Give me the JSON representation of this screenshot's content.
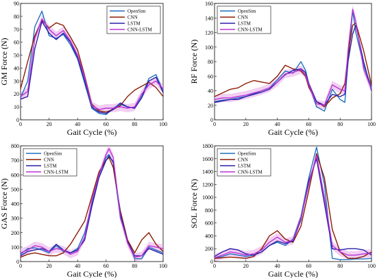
{
  "colors": {
    "OpenSim": "#1f6fbf",
    "CNN": "#8b1a00",
    "LSTM": "#2a1fa8",
    "CNN-LSTM": "#b833d6",
    "shade": "#e8a6e8"
  },
  "chart_data": [
    {
      "type": "line",
      "xlabel": "Gait Cycle (%)",
      "ylabel": "GM Force (N)",
      "xlim": [
        0,
        100
      ],
      "ylim": [
        0,
        90
      ],
      "xticks": [
        0,
        20,
        40,
        60,
        80,
        100
      ],
      "yticks": [
        0,
        10,
        20,
        30,
        40,
        50,
        60,
        70,
        80,
        90
      ],
      "legend": [
        "OpenSim",
        "CNN",
        "LSTM",
        "CNN-LSTM"
      ],
      "legend_position": "top-right",
      "x": [
        0,
        5,
        10,
        15,
        20,
        25,
        30,
        35,
        40,
        45,
        50,
        55,
        60,
        65,
        70,
        75,
        80,
        85,
        90,
        95,
        100
      ],
      "series": [
        {
          "name": "OpenSim",
          "values": [
            17,
            30,
            72,
            84,
            65,
            63,
            66,
            58,
            47,
            28,
            9,
            5,
            4,
            9,
            12,
            10,
            9,
            18,
            32,
            35,
            22
          ]
        },
        {
          "name": "CNN",
          "values": [
            24,
            45,
            65,
            77,
            71,
            75,
            73,
            64,
            54,
            34,
            12,
            7,
            6,
            8,
            11,
            18,
            23,
            26,
            29,
            25,
            18
          ]
        },
        {
          "name": "LSTM",
          "values": [
            16,
            18,
            55,
            76,
            67,
            62,
            67,
            60,
            48,
            30,
            10,
            6,
            5,
            8,
            13,
            10,
            9,
            17,
            30,
            33,
            21
          ]
        },
        {
          "name": "CNN-LSTM",
          "values": [
            18,
            22,
            63,
            78,
            70,
            65,
            69,
            61,
            50,
            33,
            11,
            8,
            9,
            9,
            10,
            9,
            10,
            20,
            27,
            30,
            24
          ]
        }
      ]
    },
    {
      "type": "line",
      "xlabel": "Gait Cycle (%)",
      "ylabel": "RF Force (N)",
      "xlim": [
        0,
        100
      ],
      "ylim": [
        0,
        160
      ],
      "xticks": [
        0,
        20,
        40,
        60,
        80,
        100
      ],
      "yticks": [
        0,
        20,
        40,
        60,
        80,
        100,
        120,
        140,
        160
      ],
      "legend": [
        "OpenSim",
        "CNN",
        "LSTM",
        "CNN-LSTM"
      ],
      "legend_position": "top-left",
      "x": [
        0,
        5,
        10,
        15,
        20,
        25,
        30,
        35,
        40,
        45,
        50,
        55,
        58,
        60,
        65,
        70,
        75,
        80,
        83,
        85,
        88,
        90,
        95,
        100
      ],
      "series": [
        {
          "name": "OpenSim",
          "values": [
            25,
            27,
            28,
            30,
            32,
            36,
            40,
            44,
            55,
            67,
            64,
            80,
            68,
            50,
            18,
            12,
            42,
            28,
            24,
            80,
            150,
            120,
            75,
            45
          ]
        },
        {
          "name": "CNN",
          "values": [
            32,
            37,
            42,
            44,
            50,
            54,
            52,
            50,
            60,
            75,
            70,
            67,
            60,
            45,
            25,
            18,
            30,
            36,
            50,
            90,
            130,
            133,
            95,
            48
          ]
        },
        {
          "name": "LSTM",
          "values": [
            24,
            26,
            28,
            28,
            32,
            35,
            38,
            42,
            52,
            62,
            68,
            70,
            65,
            50,
            25,
            20,
            35,
            32,
            35,
            80,
            118,
            130,
            80,
            40
          ]
        },
        {
          "name": "CNN-LSTM",
          "values": [
            28,
            30,
            30,
            32,
            34,
            37,
            40,
            44,
            52,
            63,
            65,
            69,
            62,
            48,
            22,
            20,
            48,
            42,
            40,
            95,
            152,
            135,
            70,
            42
          ]
        }
      ]
    },
    {
      "type": "line",
      "xlabel": "Gait Cycle (%)",
      "ylabel": "GAS Force (N)",
      "xlim": [
        0,
        100
      ],
      "ylim": [
        0,
        800
      ],
      "xticks": [
        0,
        20,
        40,
        60,
        80,
        100
      ],
      "yticks": [
        0,
        100,
        200,
        300,
        400,
        500,
        600,
        700,
        800
      ],
      "legend": [
        "OpenSim",
        "CNN",
        "LSTM",
        "CNN-LSTM"
      ],
      "legend_position": "top-left",
      "x": [
        0,
        5,
        10,
        15,
        20,
        25,
        30,
        35,
        40,
        45,
        50,
        55,
        60,
        62,
        65,
        70,
        75,
        80,
        85,
        90,
        95,
        100
      ],
      "series": [
        {
          "name": "OpenSim",
          "values": [
            50,
            90,
            95,
            80,
            60,
            110,
            70,
            60,
            90,
            200,
            400,
            600,
            720,
            740,
            680,
            300,
            150,
            20,
            20,
            100,
            80,
            60
          ]
        },
        {
          "name": "CNN",
          "values": [
            30,
            50,
            60,
            50,
            40,
            40,
            60,
            120,
            200,
            280,
            450,
            620,
            700,
            720,
            650,
            350,
            150,
            60,
            150,
            200,
            120,
            70
          ]
        },
        {
          "name": "LSTM",
          "values": [
            40,
            70,
            80,
            90,
            70,
            120,
            80,
            60,
            80,
            150,
            380,
            580,
            700,
            730,
            690,
            330,
            140,
            40,
            40,
            90,
            70,
            50
          ]
        },
        {
          "name": "CNN-LSTM",
          "values": [
            60,
            80,
            110,
            100,
            70,
            90,
            80,
            50,
            70,
            170,
            420,
            600,
            740,
            780,
            720,
            310,
            130,
            30,
            40,
            110,
            100,
            90
          ]
        }
      ]
    },
    {
      "type": "line",
      "xlabel": "Gait Cycle (%)",
      "ylabel": "SOL Force (N)",
      "xlim": [
        0,
        100
      ],
      "ylim": [
        0,
        1800
      ],
      "xticks": [
        0,
        20,
        40,
        60,
        80,
        100
      ],
      "yticks": [
        0,
        200,
        400,
        600,
        800,
        1000,
        1200,
        1400,
        1600,
        1800
      ],
      "legend": [
        "OpenSim",
        "CNN",
        "LSTM",
        "CNN-LSTM"
      ],
      "legend_position": "top-left",
      "x": [
        0,
        5,
        10,
        15,
        20,
        25,
        30,
        35,
        40,
        45,
        50,
        55,
        60,
        65,
        70,
        75,
        80,
        85,
        90,
        95,
        100
      ],
      "series": [
        {
          "name": "OpenSim",
          "values": [
            50,
            80,
            120,
            100,
            80,
            100,
            150,
            250,
            300,
            250,
            350,
            700,
            1300,
            1780,
            1200,
            50,
            30,
            30,
            40,
            40,
            50
          ]
        },
        {
          "name": "CNN",
          "values": [
            50,
            60,
            70,
            60,
            50,
            80,
            200,
            400,
            480,
            350,
            300,
            550,
            1100,
            1680,
            1300,
            500,
            150,
            50,
            50,
            80,
            150
          ]
        },
        {
          "name": "LSTM",
          "values": [
            80,
            150,
            200,
            180,
            120,
            100,
            150,
            250,
            320,
            280,
            320,
            650,
            1250,
            1600,
            900,
            200,
            180,
            200,
            200,
            180,
            100
          ]
        },
        {
          "name": "CNN-LSTM",
          "values": [
            60,
            100,
            150,
            130,
            100,
            120,
            180,
            300,
            380,
            300,
            330,
            680,
            1200,
            1650,
            1000,
            250,
            150,
            100,
            100,
            120,
            130
          ]
        }
      ]
    }
  ]
}
